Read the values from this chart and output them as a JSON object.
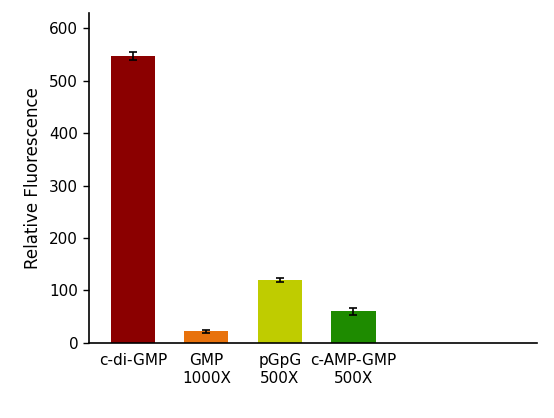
{
  "categories": [
    "c-di-GMP",
    "GMP\n1000X",
    "pGpG\n500X",
    "c-AMP-GMP\n500X"
  ],
  "values": [
    547,
    22,
    119,
    60
  ],
  "errors": [
    8,
    3,
    4,
    7
  ],
  "bar_colors": [
    "#8B0000",
    "#E8720C",
    "#BFCC00",
    "#1E8B00"
  ],
  "ylabel": "Relative Fluorescence",
  "ylim": [
    0,
    630
  ],
  "yticks": [
    0,
    100,
    200,
    300,
    400,
    500,
    600
  ],
  "background_color": "#ffffff",
  "bar_width": 0.6,
  "ylabel_fontsize": 12,
  "tick_fontsize": 11,
  "xlabel_fontsize": 11
}
